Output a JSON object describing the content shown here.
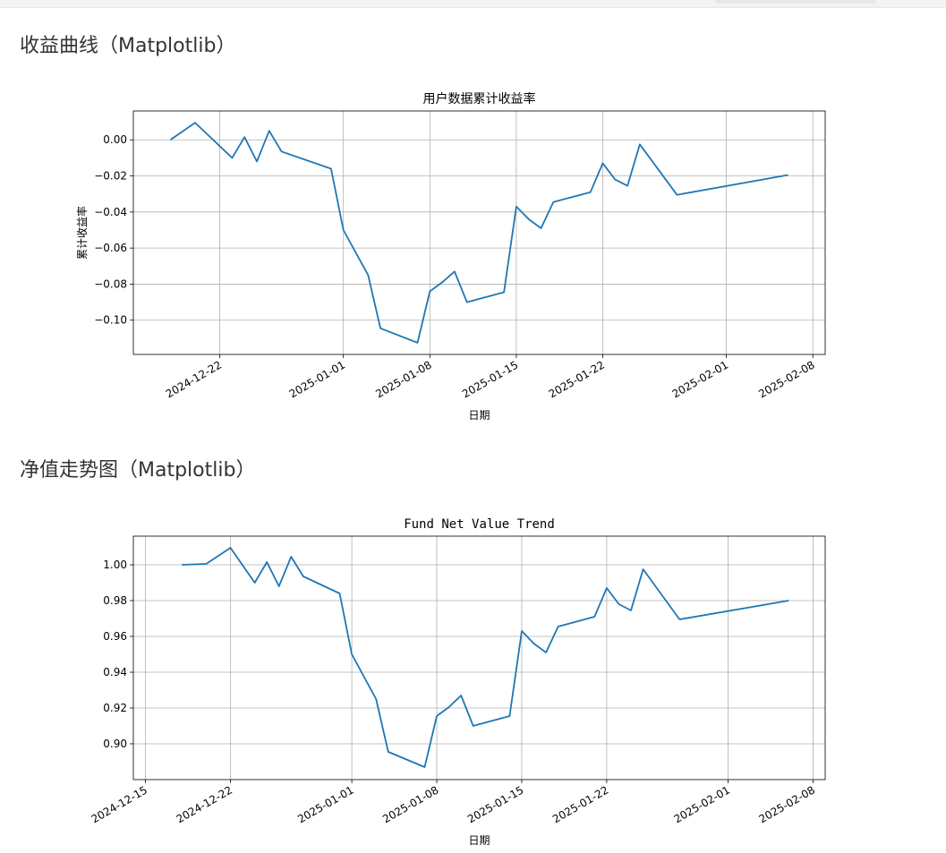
{
  "sections": [
    {
      "heading": "收益曲线（Matplotlib）"
    },
    {
      "heading": "净值走势图（Matplotlib）"
    }
  ],
  "chart_data": [
    {
      "type": "line",
      "title": "用户数据累计收益率",
      "xlabel": "日期",
      "ylabel": "累计收益率",
      "x_is_date": true,
      "xlim": [
        "2024-12-15",
        "2025-02-09"
      ],
      "ylim": [
        -0.119,
        0.016
      ],
      "x_ticks": [
        "2024-12-22",
        "2025-01-01",
        "2025-01-08",
        "2025-01-15",
        "2025-01-22",
        "2025-02-01",
        "2025-02-08"
      ],
      "y_ticks": [
        0.0,
        -0.02,
        -0.04,
        -0.06,
        -0.08,
        -0.1
      ],
      "y_tick_labels": [
        "0.00",
        "−0.02",
        "−0.04",
        "−0.06",
        "−0.08",
        "−0.10"
      ],
      "grid": true,
      "color": "#1f77b4",
      "series": [
        {
          "x": [
            "2024-12-18",
            "2024-12-20",
            "2024-12-23",
            "2024-12-24",
            "2024-12-25",
            "2024-12-26",
            "2024-12-27",
            "2024-12-31",
            "2025-01-01",
            "2025-01-03",
            "2025-01-04",
            "2025-01-07",
            "2025-01-08",
            "2025-01-09",
            "2025-01-10",
            "2025-01-11",
            "2025-01-14",
            "2025-01-15",
            "2025-01-16",
            "2025-01-17",
            "2025-01-18",
            "2025-01-21",
            "2025-01-22",
            "2025-01-23",
            "2025-01-24",
            "2025-01-25",
            "2025-01-28",
            "2025-02-06"
          ],
          "y": [
            0.0,
            0.0095,
            -0.01,
            0.0015,
            -0.012,
            0.005,
            -0.0065,
            -0.016,
            -0.05,
            -0.075,
            -0.1045,
            -0.1125,
            -0.084,
            -0.079,
            -0.073,
            -0.09,
            -0.0845,
            -0.037,
            -0.044,
            -0.049,
            -0.0345,
            -0.029,
            -0.013,
            -0.022,
            -0.0255,
            -0.0025,
            -0.0305,
            -0.0195
          ]
        }
      ]
    },
    {
      "type": "line",
      "title": "Fund Net Value Trend",
      "xlabel": "日期",
      "ylabel": "",
      "x_is_date": true,
      "xlim": [
        "2024-12-14",
        "2025-02-09"
      ],
      "ylim": [
        0.88,
        1.016
      ],
      "x_ticks": [
        "2024-12-15",
        "2024-12-22",
        "2025-01-01",
        "2025-01-08",
        "2025-01-15",
        "2025-01-22",
        "2025-02-01",
        "2025-02-08"
      ],
      "y_ticks": [
        1.0,
        0.98,
        0.96,
        0.94,
        0.92,
        0.9
      ],
      "y_tick_labels": [
        "1.00",
        "0.98",
        "0.96",
        "0.94",
        "0.92",
        "0.90"
      ],
      "grid": true,
      "color": "#1f77b4",
      "series": [
        {
          "x": [
            "2024-12-18",
            "2024-12-20",
            "2024-12-22",
            "2024-12-24",
            "2024-12-25",
            "2024-12-26",
            "2024-12-27",
            "2024-12-28",
            "2024-12-31",
            "2025-01-01",
            "2025-01-03",
            "2025-01-04",
            "2025-01-07",
            "2025-01-08",
            "2025-01-09",
            "2025-01-10",
            "2025-01-11",
            "2025-01-14",
            "2025-01-15",
            "2025-01-16",
            "2025-01-17",
            "2025-01-18",
            "2025-01-21",
            "2025-01-22",
            "2025-01-23",
            "2025-01-24",
            "2025-01-25",
            "2025-01-28",
            "2025-02-06"
          ],
          "y": [
            1.0,
            1.0005,
            1.0095,
            0.99,
            1.0015,
            0.988,
            1.0045,
            0.9935,
            0.984,
            0.95,
            0.925,
            0.8955,
            0.887,
            0.9155,
            0.9205,
            0.927,
            0.91,
            0.9155,
            0.963,
            0.956,
            0.951,
            0.9655,
            0.971,
            0.987,
            0.978,
            0.9745,
            0.9975,
            0.9695,
            0.98
          ]
        }
      ]
    }
  ]
}
